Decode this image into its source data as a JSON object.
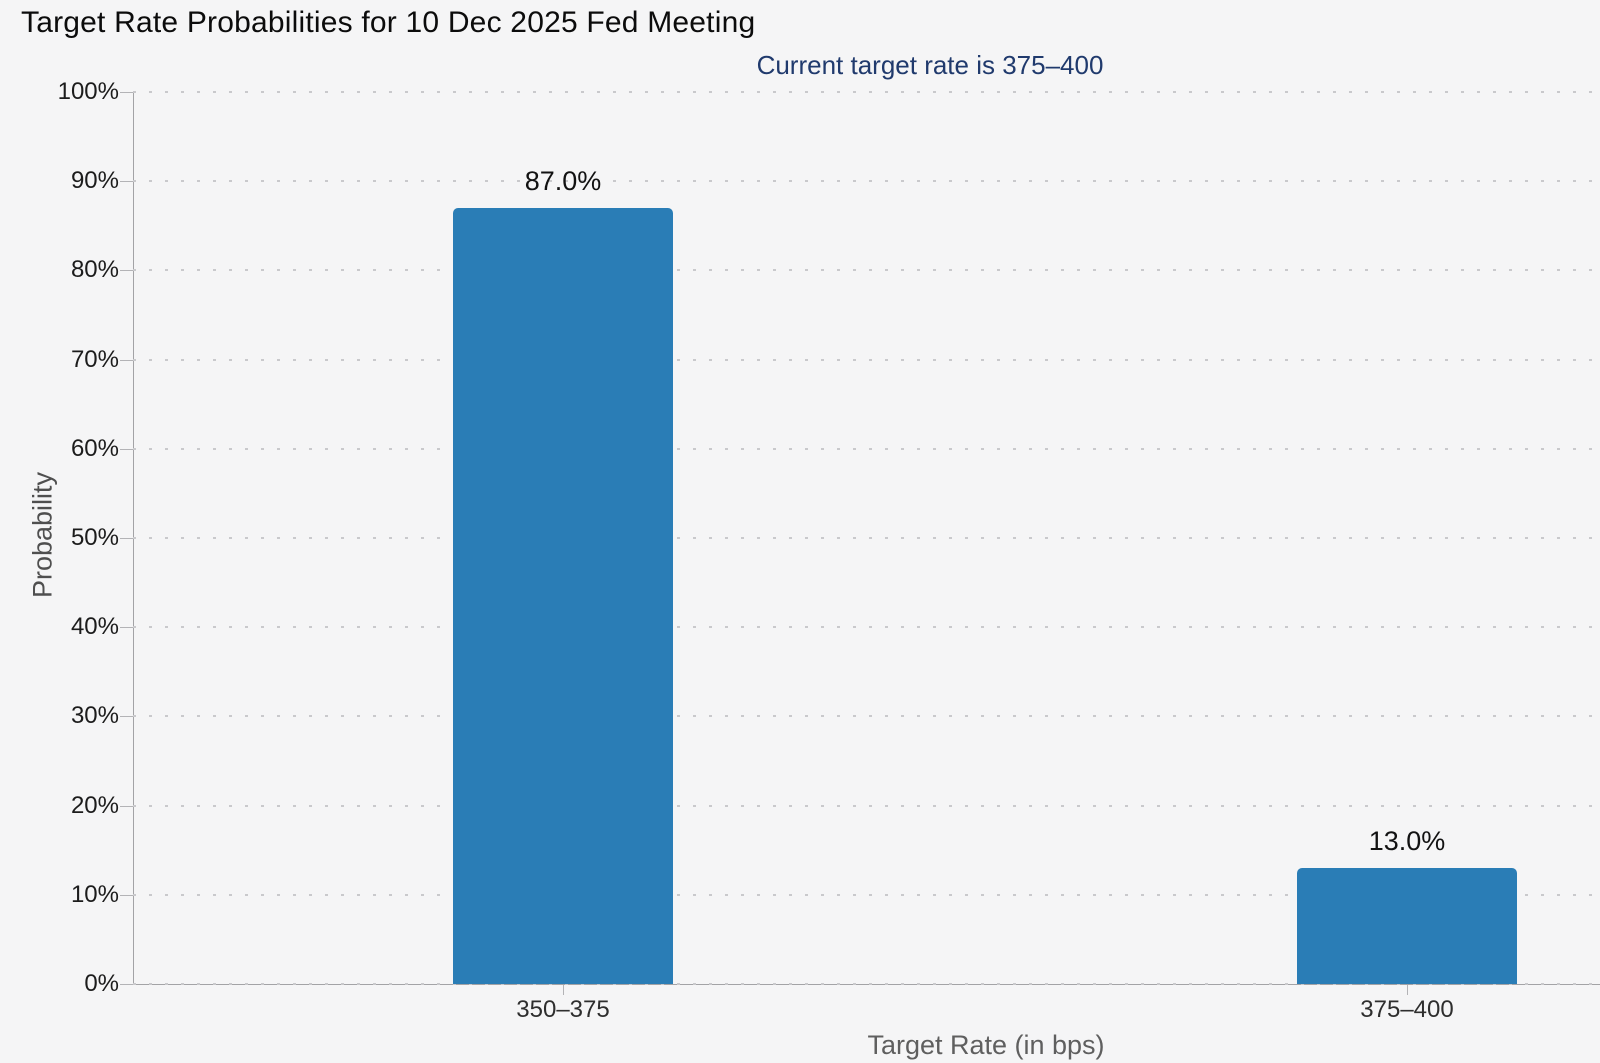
{
  "title": "Target Rate Probabilities for 10 Dec 2025 Fed Meeting",
  "subtitle": "Current target rate is 375–400",
  "colors": {
    "bar": "#2a7db6",
    "subtitle_text": "#203a6d",
    "background": "#f5f5f6"
  },
  "chart_data": {
    "type": "bar",
    "title": "Target Rate Probabilities for 10 Dec 2025 Fed Meeting",
    "subtitle": "Current target rate is 375–400",
    "categories": [
      "350–375",
      "375–400"
    ],
    "values": [
      87.0,
      13.0
    ],
    "value_labels": [
      "87.0%",
      "13.0%"
    ],
    "xlabel": "Target Rate (in bps)",
    "ylabel": "Probability",
    "ylim": [
      0,
      100
    ],
    "ytick_step": 10,
    "ytick_labels": [
      "0%",
      "10%",
      "20%",
      "30%",
      "40%",
      "50%",
      "60%",
      "70%",
      "80%",
      "90%",
      "100%"
    ],
    "grid": "dotted-horizontal",
    "legend": "none",
    "bar_color": "#2a7db6"
  }
}
